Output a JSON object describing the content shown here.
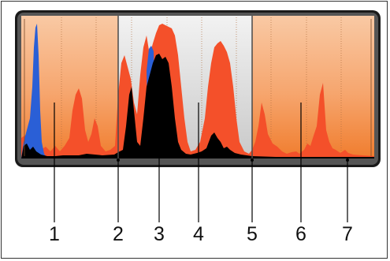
{
  "callouts": [
    "1",
    "2",
    "3",
    "4",
    "5",
    "6",
    "7"
  ],
  "colors": {
    "panel_orange": "#f59e60",
    "panel_gray": "#e6e6e6",
    "histogram_red": "#f4502a",
    "histogram_black": "#000000",
    "histogram_blue": "#2a5fd6",
    "bezel": "#1a1a1a"
  }
}
